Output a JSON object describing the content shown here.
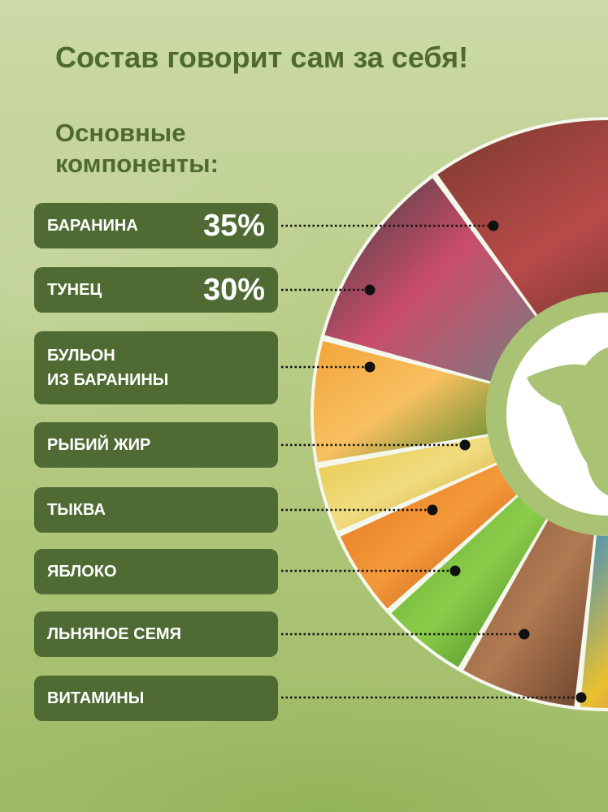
{
  "title": "Состав говорит сам за себя!",
  "subtitle_line1": "Основные",
  "subtitle_line2": "компоненты:",
  "components": [
    {
      "label": "БАРАНИНА",
      "percent": "35%",
      "image": "lamb-meat"
    },
    {
      "label": "ТУНЕЦ",
      "percent": "30%",
      "image": "tuna"
    },
    {
      "label_line1": "БУЛЬОН",
      "label_line2": "ИЗ БАРАНИНЫ",
      "image": "broth"
    },
    {
      "label": "РЫБИЙ ЖИР",
      "image": "fish-oil"
    },
    {
      "label": "ТЫКВА",
      "image": "pumpkin"
    },
    {
      "label": "ЯБЛОКО",
      "image": "apple"
    },
    {
      "label": "ЛЬНЯНОЕ СЕМЯ",
      "image": "flax-seed"
    },
    {
      "label": "ВИТАМИНЫ",
      "image": "vitamins"
    }
  ],
  "colors": {
    "label_bg": "#4f6b33",
    "title": "#4e6a30",
    "ring": "#a9c273"
  },
  "center_icon": "sheep-head-icon"
}
